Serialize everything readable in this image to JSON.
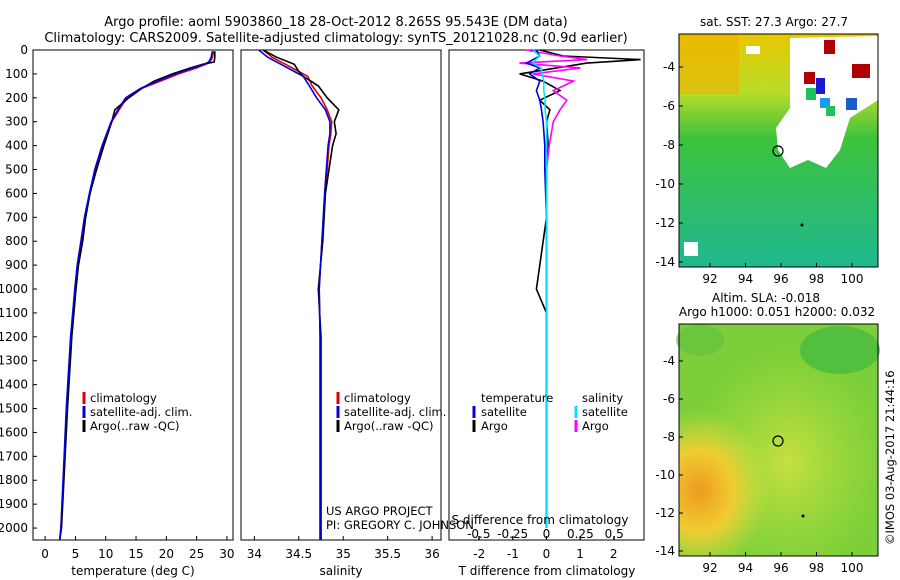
{
  "title_line1": "Argo profile: aoml 5903860_18 28-Oct-2012 8.265S 95.543E (DM data)",
  "title_line2": "Climatology: CARS2009. Satellite-adjusted climatology: synTS_20121028.nc (0.9d earlier)",
  "colors": {
    "climatology": "#e00000",
    "satellite": "#0000e0",
    "argo": "#000000",
    "argo_s": "#ff00ff",
    "sat_s": "#00e5ff"
  },
  "depth_axis": {
    "ticks": [
      "0",
      "100",
      "200",
      "300",
      "400",
      "500",
      "600",
      "700",
      "800",
      "900",
      "1000",
      "1100",
      "1200",
      "1300",
      "1400",
      "1500",
      "1600",
      "1700",
      "1800",
      "1900",
      "2000"
    ]
  },
  "panel_temp": {
    "xlabel": "temperature (deg C)",
    "xticks": [
      "0",
      "5",
      "10",
      "15",
      "20",
      "25",
      "30"
    ],
    "legend": [
      "climatology",
      "satellite-adj. clim.",
      "Argo(..raw -QC)"
    ]
  },
  "panel_sal": {
    "xlabel": "salinity",
    "xticks": [
      "34",
      "34.5",
      "35",
      "35.5",
      "36"
    ],
    "legend": [
      "climatology",
      "satellite-adj. clim.",
      "Argo(..raw -QC)"
    ],
    "credit1": "US ARGO PROJECT",
    "credit2": "PI: GREGORY C. JOHNSON"
  },
  "panel_diff": {
    "xlabel": "T difference from climatology",
    "xticks_bottom": [
      "-2",
      "-1",
      "0",
      "1",
      "2"
    ],
    "s_label": "S difference from climatology",
    "xticks_top": [
      "-0.5",
      "-0.25",
      "0",
      "0.25",
      "0.5"
    ],
    "legend_temp_head": "temperature",
    "legend_temp": [
      "satellite",
      "Argo"
    ],
    "legend_sal_head": "salinity",
    "legend_sal": [
      "satellite",
      "Argo"
    ]
  },
  "map_top": {
    "title": "sat. SST: 27.3 Argo: 27.7",
    "yticks": [
      "-4",
      "-6",
      "-8",
      "-10",
      "-12",
      "-14"
    ],
    "xticks": [
      "92",
      "94",
      "96",
      "98",
      "100"
    ]
  },
  "map_bottom": {
    "title1": "Altim. SLA: -0.018",
    "title2": "Argo h1000: 0.051 h2000: 0.032",
    "yticks": [
      "-4",
      "-6",
      "-8",
      "-10",
      "-12",
      "-14"
    ],
    "xticks": [
      "92",
      "94",
      "96",
      "98",
      "100"
    ]
  },
  "stamp": "©IMOS 03-Aug-2017 21:44:16",
  "chart_data": {
    "type": "line",
    "temperature_profile": {
      "ylim": [
        2050,
        0
      ],
      "xlim": [
        -2,
        31
      ],
      "depth": [
        5,
        30,
        50,
        60,
        75,
        100,
        130,
        160,
        200,
        250,
        300,
        400,
        500,
        600,
        700,
        800,
        900,
        1000,
        1200,
        1500,
        2000,
        2050
      ],
      "climatology": [
        27.8,
        27.6,
        27.2,
        26.5,
        25,
        22,
        19,
        16,
        13.5,
        12.2,
        11,
        9.5,
        8.3,
        7.4,
        6.6,
        6,
        5.4,
        5,
        4.3,
        3.6,
        2.6,
        2.4
      ],
      "satellite": [
        27.6,
        27.4,
        27,
        26.2,
        24.5,
        21.5,
        18.5,
        15.8,
        13.3,
        12,
        10.9,
        9.4,
        8.2,
        7.3,
        6.5,
        5.9,
        5.3,
        4.9,
        4.2,
        3.5,
        2.6,
        2.4
      ],
      "argo": [
        28,
        28,
        27.9,
        26,
        24,
        21,
        18,
        16,
        13.8,
        11.5,
        11,
        9.7,
        8.5,
        7.4,
        6.7,
        6.2,
        5.5,
        5.1,
        4.4,
        3.7,
        2.7,
        2.4
      ]
    },
    "salinity_profile": {
      "ylim": [
        2050,
        0
      ],
      "xlim": [
        33.85,
        36.1
      ],
      "depth": [
        0,
        30,
        60,
        90,
        110,
        150,
        200,
        250,
        300,
        350,
        400,
        600,
        800,
        1000,
        1200,
        1500,
        2000,
        2050
      ],
      "climatology": [
        34.1,
        34.2,
        34.35,
        34.5,
        34.6,
        34.65,
        34.75,
        34.82,
        34.87,
        34.86,
        34.84,
        34.8,
        34.76,
        34.73,
        34.74,
        34.74,
        34.74,
        34.74
      ],
      "satellite": [
        34.05,
        34.15,
        34.3,
        34.45,
        34.55,
        34.62,
        34.7,
        34.8,
        34.85,
        34.85,
        34.83,
        34.79,
        34.76,
        34.73,
        34.74,
        34.74,
        34.74,
        34.74
      ],
      "argo": [
        34.1,
        34.25,
        34.45,
        34.5,
        34.55,
        34.72,
        34.82,
        34.95,
        34.9,
        34.92,
        34.88,
        34.8,
        34.77,
        34.72,
        34.75,
        34.75,
        34.75,
        34.75
      ]
    },
    "difference_profile": {
      "ylim": [
        2050,
        0
      ],
      "t_xlim": [
        -2.9,
        2.9
      ],
      "s_xlim": [
        -0.72,
        0.72
      ],
      "depth": [
        0,
        25,
        40,
        55,
        75,
        100,
        130,
        170,
        210,
        250,
        300,
        400,
        500,
        700,
        900,
        1000,
        1100,
        1500,
        2000
      ],
      "t_satellite": [
        -0.3,
        -0.2,
        -0.4,
        -0.6,
        -0.2,
        -0.5,
        -0.2,
        -0.3,
        -0.2,
        -0.15,
        -0.1,
        -0.05,
        -0.05,
        0,
        0,
        0,
        0,
        0,
        0
      ],
      "t_argo": [
        -0.2,
        0.5,
        2.8,
        1.2,
        0.3,
        -0.8,
        -0.1,
        0.4,
        -0.2,
        0.1,
        0,
        0.05,
        0,
        0,
        -0.2,
        -0.3,
        0,
        0,
        0
      ],
      "s_satellite": [
        -0.1,
        -0.05,
        -0.08,
        -0.1,
        -0.04,
        -0.03,
        -0.02,
        -0.02,
        -0.01,
        -0.01,
        0,
        0,
        0,
        0,
        0,
        0,
        0,
        0,
        0
      ],
      "s_argo": [
        -0.15,
        0.1,
        0.3,
        -0.2,
        0.25,
        -0.1,
        0.2,
        0.05,
        0.15,
        0.1,
        0.05,
        0.02,
        0,
        0,
        0,
        0,
        0,
        0,
        0
      ]
    }
  }
}
